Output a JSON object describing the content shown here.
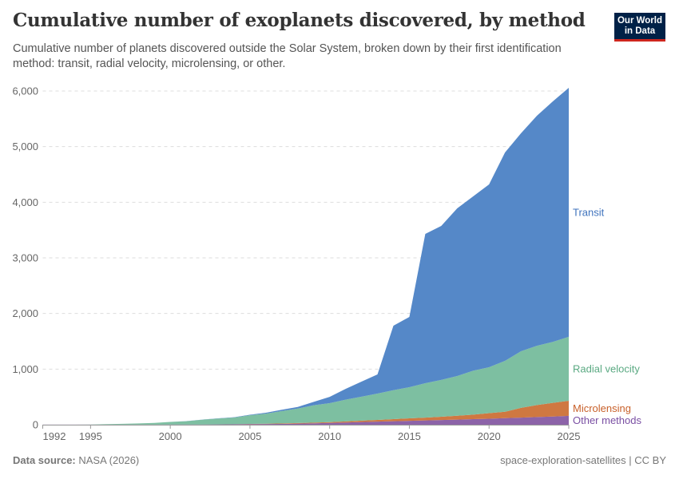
{
  "header": {
    "title": "Cumulative number of exoplanets discovered, by method",
    "subtitle": "Cumulative number of planets discovered outside the Solar System, broken down by their first identification method: transit, radial velocity, microlensing, or other.",
    "logo_text": "Our World in Data"
  },
  "footer": {
    "source_label": "Data source:",
    "source_value": "NASA (2026)",
    "right": "space-exploration-satellites | CC BY"
  },
  "chart_data": {
    "type": "area",
    "stacked": true,
    "title": "Cumulative number of exoplanets discovered, by method",
    "xlabel": "",
    "ylabel": "",
    "xlim": [
      1992,
      2025
    ],
    "ylim": [
      0,
      6000
    ],
    "grid": "horizontal dashed",
    "legend": "right (inline labels)",
    "x_ticks": [
      "1992",
      "1995",
      "2000",
      "2005",
      "2010",
      "2015",
      "2020",
      "2025"
    ],
    "y_ticks": [
      "0",
      "1,000",
      "2,000",
      "3,000",
      "4,000",
      "5,000",
      "6,000"
    ],
    "x": [
      1992,
      1993,
      1994,
      1995,
      1996,
      1997,
      1998,
      1999,
      2000,
      2001,
      2002,
      2003,
      2004,
      2005,
      2006,
      2007,
      2008,
      2009,
      2010,
      2011,
      2012,
      2013,
      2014,
      2015,
      2016,
      2017,
      2018,
      2019,
      2020,
      2021,
      2022,
      2023,
      2024,
      2025
    ],
    "series": [
      {
        "name": "Other methods",
        "color": "#8c63a8",
        "label_color": "#7a4fa3",
        "values": [
          2,
          2,
          2,
          2,
          2,
          2,
          2,
          2,
          3,
          3,
          4,
          5,
          7,
          10,
          12,
          15,
          20,
          25,
          32,
          40,
          48,
          55,
          62,
          70,
          78,
          85,
          92,
          100,
          108,
          118,
          128,
          138,
          148,
          160
        ]
      },
      {
        "name": "Microlensing",
        "color": "#cf7841",
        "label_color": "#c8602a",
        "values": [
          0,
          0,
          0,
          0,
          0,
          0,
          0,
          0,
          0,
          0,
          0,
          1,
          2,
          4,
          6,
          8,
          10,
          12,
          15,
          20,
          26,
          32,
          38,
          45,
          50,
          58,
          70,
          82,
          100,
          115,
          175,
          215,
          245,
          270
        ]
      },
      {
        "name": "Radial velocity",
        "color": "#7dbfa1",
        "label_color": "#5aa982",
        "values": [
          0,
          0,
          0,
          2,
          8,
          14,
          21,
          31,
          47,
          60,
          86,
          106,
          121,
          156,
          182,
          222,
          260,
          313,
          341,
          390,
          431,
          473,
          520,
          560,
          618,
          662,
          713,
          788,
          825,
          915,
          1017,
          1067,
          1097,
          1150
        ]
      },
      {
        "name": "Transit",
        "color": "#5588c8",
        "label_color": "#3f73bd",
        "values": [
          0,
          0,
          0,
          0,
          0,
          0,
          0,
          0,
          1,
          2,
          2,
          3,
          5,
          10,
          15,
          25,
          30,
          60,
          112,
          195,
          270,
          345,
          1160,
          1263,
          2684,
          2769,
          3015,
          3135,
          3287,
          3747,
          3920,
          4135,
          4323,
          4477
        ]
      }
    ]
  }
}
